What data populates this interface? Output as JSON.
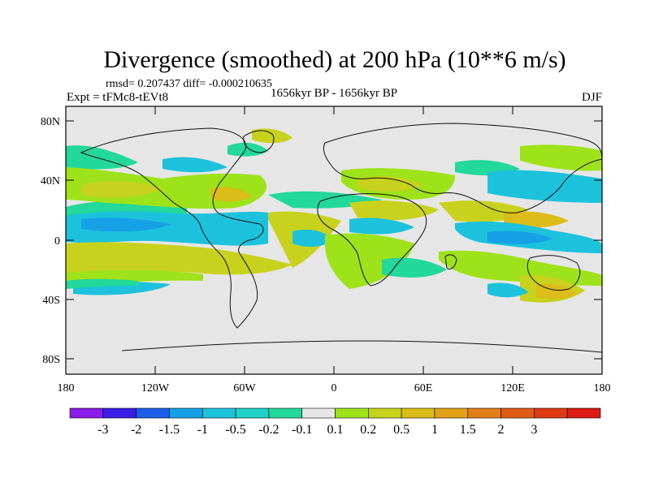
{
  "title": "Divergence (smoothed) at 200 hPa (10**6 m/s)",
  "stats": "rmsd= 0.207437 diff= -0.000210635",
  "experiment": "Expt = tFMc8-tEVt8",
  "period": "1656kyr BP - 1656kyr BP",
  "season": "DJF",
  "lat_labels": [
    "80N",
    "40N",
    "0",
    "40S",
    "80S"
  ],
  "lon_labels": [
    "180",
    "120W",
    "60W",
    "0",
    "60E",
    "120E",
    "180"
  ],
  "colorbar": {
    "colors": [
      "#8a1ce8",
      "#3c1ee6",
      "#1b5ee8",
      "#16a0e6",
      "#1cc2dc",
      "#20d2c8",
      "#22d89a",
      "#e6e6e6",
      "#9ee21a",
      "#c8d21c",
      "#dcbc18",
      "#e2a218",
      "#e27e18",
      "#e05c16",
      "#de3a14",
      "#dc1c14"
    ],
    "tick_labels": [
      "-3",
      "-2",
      "-1.5",
      "-1",
      "-0.5",
      "-0.2",
      "-0.1",
      "0.1",
      "0.2",
      "0.5",
      "1",
      "1.5",
      "2",
      "3"
    ]
  },
  "palette": {
    "ocean": "#e6e6e6",
    "pos_weak": "#9ee21a",
    "pos_mid": "#c8d21c",
    "pos_strong": "#dcbc18",
    "neg_weak": "#22d89a",
    "neg_mid": "#1cc2dc",
    "neg_strong": "#16a0e6"
  }
}
